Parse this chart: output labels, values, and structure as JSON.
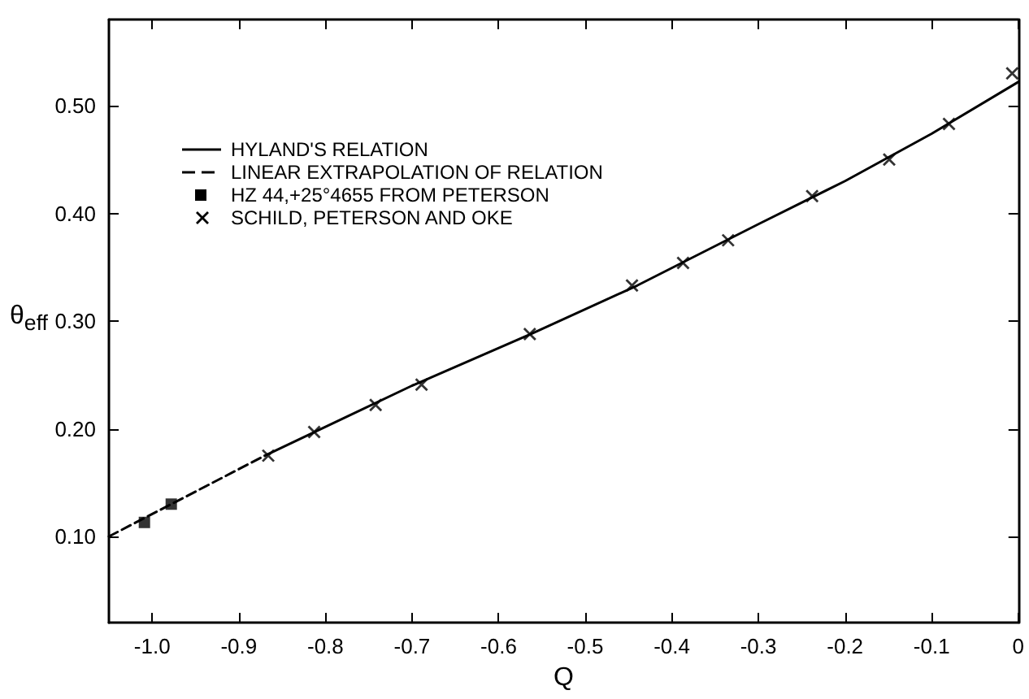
{
  "chart_data": {
    "type": "line",
    "xlabel": "Q",
    "ylabel": "θ$_{eff}$",
    "xlim": [
      -1.05,
      0
    ],
    "ylim": [
      0.02,
      0.58
    ],
    "xticks": [
      {
        "value": -1.0,
        "label": "-1.0"
      },
      -0.9,
      -0.8,
      -0.7,
      -0.6,
      -0.5,
      -0.4,
      -0.3,
      -0.2,
      -0.1,
      0
    ],
    "yticks": [
      {
        "value": 0.1,
        "label": "0.10"
      },
      {
        "value": 0.2,
        "label": "0.20"
      },
      {
        "value": 0.3,
        "label": "0.30"
      },
      {
        "value": 0.4,
        "label": "0.40"
      },
      {
        "value": 0.5,
        "label": "0.50"
      }
    ],
    "grid": false,
    "legend": "top left",
    "series": [
      {
        "name": "HYLAND'S RELATION",
        "type": "line",
        "line_style": "solid",
        "marker": "none",
        "color": "#000000",
        "x": [
          -0.87,
          -0.7,
          -0.56,
          -0.44,
          -0.3,
          -0.2,
          -0.1,
          0
        ],
        "values": [
          0.175,
          0.24,
          0.289,
          0.333,
          0.39,
          0.43,
          0.474,
          0.522
        ]
      },
      {
        "name": "LINEAR EXTRAPOLATION OF RELATION",
        "type": "line",
        "line_style": "dashed",
        "marker": "none",
        "color": "#000000",
        "x": [
          -1.05,
          -0.87
        ],
        "values": [
          0.1,
          0.175
        ]
      },
      {
        "name": "HZ 44,+25°4655 FROM PETERSON",
        "type": "scatter",
        "marker": "square",
        "color": "#000000",
        "x": [
          -1.009,
          -0.978
        ],
        "values": [
          0.113,
          0.13
        ]
      },
      {
        "name": "SCHILD, PETERSON AND OKE",
        "type": "scatter",
        "marker": "cross",
        "color": "#000000",
        "x": [
          -0.866,
          -0.813,
          -0.742,
          -0.689,
          -0.564,
          -0.446,
          -0.387,
          -0.335,
          -0.238,
          -0.149,
          -0.08,
          -0.007
        ],
        "values": [
          0.175,
          0.197,
          0.222,
          0.241,
          0.288,
          0.333,
          0.354,
          0.375,
          0.416,
          0.45,
          0.483,
          0.53
        ]
      }
    ]
  }
}
